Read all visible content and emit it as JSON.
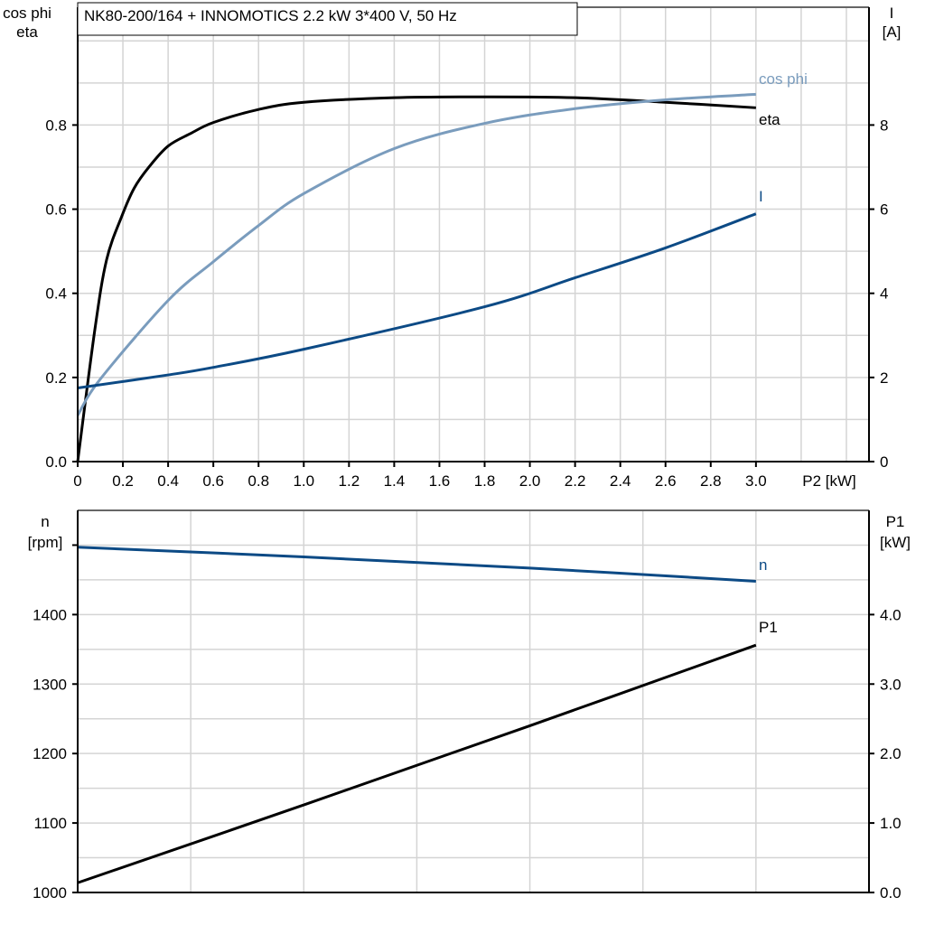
{
  "title": "NK80-200/164 + INNOMOTICS   2.2 kW   3*400 V, 50 Hz",
  "colors": {
    "eta": "#000000",
    "cos_phi": "#7a9cbd",
    "I": "#0c4a85",
    "n": "#0c4a85",
    "P1": "#000000"
  },
  "chart_data": [
    {
      "type": "line",
      "xlabel": "P2 [kW]",
      "ylabel_left": [
        "cos phi",
        "eta"
      ],
      "ylabel_right": [
        "I",
        "[A]"
      ],
      "xlim": [
        0,
        3.5
      ],
      "ylim_left": [
        0,
        1.08
      ],
      "ylim_right": [
        0,
        10.8
      ],
      "xticks": [
        "0",
        "0.2",
        "0.4",
        "0.6",
        "0.8",
        "1.0",
        "1.2",
        "1.4",
        "1.6",
        "1.8",
        "2.0",
        "2.2",
        "2.4",
        "2.6",
        "2.8",
        "3.0"
      ],
      "yticks_left": [
        "0.0",
        "0.2",
        "0.4",
        "0.6",
        "0.8"
      ],
      "yticks_right": [
        "0",
        "2",
        "4",
        "6",
        "8"
      ],
      "grid": true,
      "series": [
        {
          "name": "eta",
          "axis": "left",
          "x": [
            0,
            0.076,
            0.128,
            0.195,
            0.25,
            0.315,
            0.4,
            0.5,
            0.6,
            0.8,
            1.0,
            1.4,
            1.8,
            2.2,
            2.6,
            3.0
          ],
          "y": [
            0,
            0.314,
            0.48,
            0.583,
            0.65,
            0.7,
            0.75,
            0.78,
            0.806,
            0.837,
            0.854,
            0.865,
            0.867,
            0.865,
            0.854,
            0.841
          ]
        },
        {
          "name": "cos phi",
          "axis": "left",
          "x": [
            0,
            0.1,
            0.4,
            0.6,
            0.8,
            1.0,
            1.4,
            1.8,
            2.2,
            2.6,
            3.0
          ],
          "y": [
            0.11,
            0.196,
            0.383,
            0.475,
            0.561,
            0.637,
            0.744,
            0.804,
            0.839,
            0.86,
            0.873
          ]
        },
        {
          "name": "I",
          "axis": "right",
          "x": [
            0,
            0.4,
            0.6,
            1.0,
            1.8,
            2.2,
            2.6,
            3.0
          ],
          "y": [
            1.75,
            2.06,
            2.24,
            2.67,
            3.68,
            4.37,
            5.08,
            5.89
          ]
        }
      ]
    },
    {
      "type": "line",
      "ylabel_left": [
        "n",
        "[rpm]"
      ],
      "ylabel_right": [
        "P1",
        "[kW]"
      ],
      "xlim": [
        0,
        3.5
      ],
      "ylim_left": [
        1000,
        1550
      ],
      "ylim_right": [
        0,
        5.5
      ],
      "yticks_left": [
        "1000",
        "1100",
        "1200",
        "1300",
        "1400"
      ],
      "yticks_right": [
        "0.0",
        "1.0",
        "2.0",
        "3.0",
        "4.0"
      ],
      "grid": true,
      "series": [
        {
          "name": "n",
          "axis": "left",
          "x": [
            0,
            1.0,
            2.0,
            3.0
          ],
          "y": [
            1497,
            1483,
            1467,
            1448
          ]
        },
        {
          "name": "P1",
          "axis": "right",
          "x": [
            0,
            1.0,
            2.0,
            3.0
          ],
          "y": [
            0.14,
            1.26,
            2.4,
            3.56
          ]
        }
      ]
    }
  ]
}
